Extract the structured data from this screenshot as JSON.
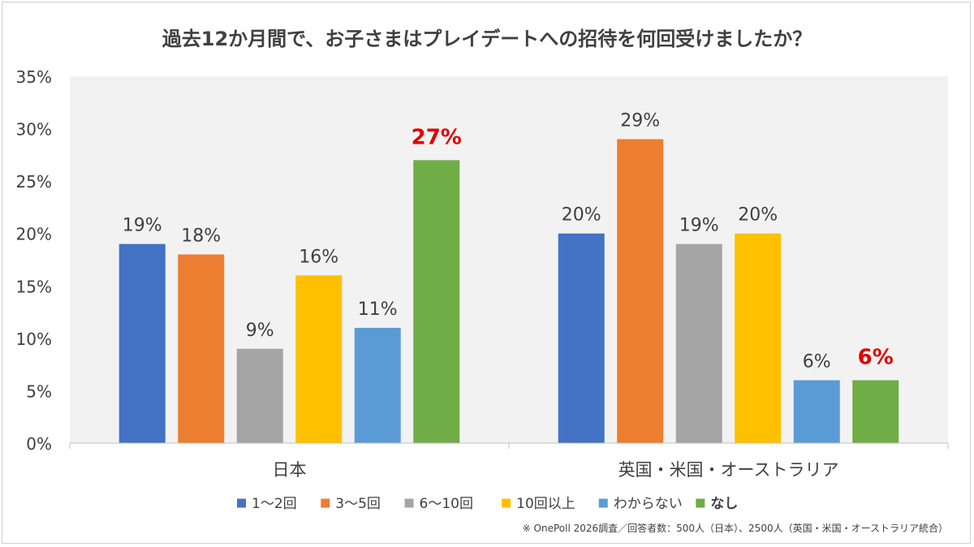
{
  "chart_data": {
    "type": "bar",
    "title": "過去12か月間で、お子さまはプレイデートへの招待を何回受けましたか？",
    "categories": [
      "日本",
      "英国・米国・オーストラリア"
    ],
    "series": [
      {
        "name": "1～2回",
        "color": "#4472c4",
        "values": [
          19,
          20
        ],
        "labels": [
          "19%",
          "20%"
        ]
      },
      {
        "name": "3～5回",
        "color": "#ed7d31",
        "values": [
          18,
          29
        ],
        "labels": [
          "18%",
          "29%"
        ]
      },
      {
        "name": "6～10回",
        "color": "#a5a5a5",
        "values": [
          9,
          19
        ],
        "labels": [
          "9%",
          "19%"
        ]
      },
      {
        "name": "10回以上",
        "color": "#ffc000",
        "values": [
          16,
          20
        ],
        "labels": [
          "16%",
          "20%"
        ]
      },
      {
        "name": "わからない",
        "color": "#5b9bd5",
        "values": [
          11,
          6
        ],
        "labels": [
          "11%",
          "6%"
        ]
      },
      {
        "name": "なし",
        "color": "#70ad47",
        "values": [
          27,
          6
        ],
        "labels": [
          "27%",
          "6%"
        ],
        "highlight": true,
        "highlight_color": "#e00000"
      }
    ],
    "yticks": [
      "0%",
      "5%",
      "10%",
      "15%",
      "20%",
      "25%",
      "30%",
      "35%"
    ],
    "ylim": [
      0,
      35
    ],
    "ytick_step": 5,
    "grid": false,
    "legend_position": "bottom",
    "plot_background": "#f2f2f2"
  },
  "footnote": "※ OnePoll 2026調査／回答者数：500人（日本）、2500人（英国・米国・オーストラリア統合）"
}
